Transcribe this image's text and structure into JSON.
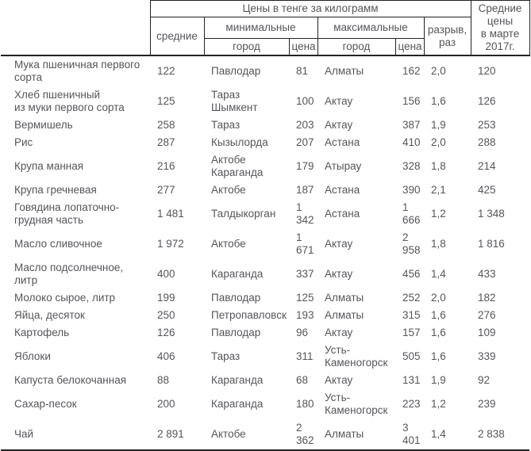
{
  "table": {
    "title_note": "Цены в тенге за килограмм",
    "header": {
      "group_title": "Цены в тенге за килограмм",
      "avg": "средние",
      "min_group": "минимальные",
      "max_group": "максимальные",
      "city": "город",
      "price": "цена",
      "gap": "разрыв,\nраз",
      "march_avg": "Средние\nцены\nв марте\n2017г."
    },
    "columns": [
      "product",
      "avg-price",
      "min-city",
      "min-price",
      "max-city",
      "max-price",
      "gap-ratio",
      "march-avg-price"
    ],
    "rows": [
      [
        "Мука пшеничная первого\nсорта",
        "122",
        "Павлодар",
        "81",
        "Алматы",
        "162",
        "2,0",
        "120"
      ],
      [
        "Хлеб пшеничный\nиз муки первого сорта",
        "125",
        "Тараз\nШымкент",
        "100",
        "Актау",
        "156",
        "1,6",
        "126"
      ],
      [
        "Вермишель",
        "258",
        "Тараз",
        "203",
        "Актау",
        "387",
        "1,9",
        "253"
      ],
      [
        "Рис",
        "287",
        "Кызылорда",
        "207",
        "Астана",
        "410",
        "2,0",
        "288"
      ],
      [
        "Крупа манная",
        "216",
        "Актобе\nКараганда",
        "179",
        "Атырау",
        "328",
        "1,8",
        "214"
      ],
      [
        "Крупа гречневая",
        "277",
        "Актобе",
        "187",
        "Астана",
        "390",
        "2,1",
        "425"
      ],
      [
        "Говядина лопаточно-\nгрудная часть",
        "1 481",
        "Талдыкорган",
        "1\n342",
        "Астана",
        "1\n666",
        "1,2",
        "1 348"
      ],
      [
        "Масло сливочное",
        "1 972",
        "Актобе",
        "1\n671",
        "Актау",
        "2\n958",
        "1,8",
        "1 816"
      ],
      [
        "Масло подсолнечное,\nлитр",
        "400",
        "Караганда",
        "337",
        "Актау",
        "456",
        "1,4",
        "433"
      ],
      [
        "Молоко сырое, литр",
        "199",
        "Павлодар",
        "125",
        "Алматы",
        "252",
        "2,0",
        "182"
      ],
      [
        "Яйца, десяток",
        "250",
        "Петропавловск",
        "193",
        "Алматы",
        "315",
        "1,6",
        "276"
      ],
      [
        "Картофель",
        "126",
        "Павлодар",
        "96",
        "Актау",
        "157",
        "1,6",
        "109"
      ],
      [
        "Яблоки",
        "406",
        "Тараз",
        "311",
        "Усть-\nКаменогорск",
        "505",
        "1,6",
        "339"
      ],
      [
        "Капуста белокочанная",
        "88",
        "Караганда",
        "68",
        "Актау",
        "131",
        "1,9",
        "92"
      ],
      [
        "Сахар-песок",
        "200",
        "Караганда",
        "180",
        "Усть-\nКаменогорск",
        "223",
        "1,2",
        "239"
      ],
      [
        "Чай",
        "2 891",
        "Актобе",
        "2\n362",
        "Алматы",
        "3\n401",
        "1,4",
        "2 838"
      ]
    ],
    "colors": {
      "text": "#55565a",
      "border": "#222222",
      "background": "#ffffff"
    }
  }
}
